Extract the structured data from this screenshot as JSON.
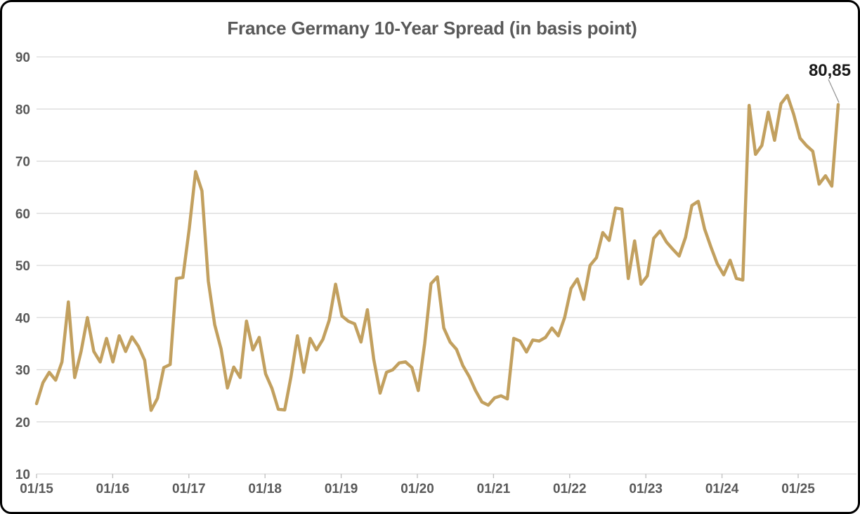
{
  "chart_data": {
    "type": "line",
    "title": "France Germany 10-Year Spread (in basis point)",
    "xlabel": "",
    "ylabel": "",
    "x_interval": "monthly",
    "x_tick_labels": [
      "01/15",
      "01/16",
      "01/17",
      "01/18",
      "01/19",
      "01/20",
      "01/21",
      "01/22",
      "01/23",
      "01/24",
      "01/25"
    ],
    "y_ticks": [
      10,
      20,
      30,
      40,
      50,
      60,
      70,
      80,
      90
    ],
    "ylim": [
      10,
      90
    ],
    "grid": "horizontal",
    "legend": "none",
    "values": [
      23.5,
      27.5,
      29.5,
      28,
      31.5,
      43,
      28.5,
      33.5,
      40,
      33.5,
      31.5,
      36,
      31.5,
      36.5,
      33.5,
      36.3,
      34.5,
      31.8,
      22.2,
      24.5,
      30.4,
      31,
      47.5,
      47.7,
      57,
      68,
      64.3,
      47,
      38.6,
      34,
      26.5,
      30.5,
      28.5,
      39.3,
      33.8,
      36.2,
      29.2,
      26.4,
      22.4,
      22.3,
      28.7,
      36.5,
      29.5,
      36,
      33.8,
      35.8,
      39.5,
      46.4,
      40.3,
      39.3,
      38.8,
      35.3,
      41.5,
      32,
      25.5,
      29.5,
      30,
      31.3,
      31.5,
      30.4,
      26,
      35,
      46.5,
      47.8,
      38,
      35.3,
      33.9,
      30.8,
      28.7,
      26,
      23.8,
      23.2,
      24.6,
      25,
      24.4,
      36,
      35.5,
      33.4,
      35.7,
      35.5,
      36.2,
      38,
      36.5,
      40,
      45.6,
      47.4,
      43.5,
      50,
      51.5,
      56.3,
      54.8,
      61,
      60.8,
      47.5,
      54.7,
      46.4,
      48,
      55.2,
      56.6,
      54.5,
      53.1,
      51.8,
      55.4,
      61.5,
      62.3,
      57,
      53.5,
      50.3,
      48.2,
      51,
      47.5,
      47.2,
      80.7,
      71.3,
      73,
      79.4,
      74,
      81,
      82.6,
      79,
      74.4,
      73,
      71.9,
      65.6,
      67.2,
      65.2,
      80.85
    ],
    "annotation": {
      "label": "80,85",
      "value": 80.85,
      "position": "last-point"
    },
    "colors": {
      "line": "#C2A05F",
      "grid": "#D9D9D9",
      "tick": "#BFBFBF",
      "axis_text": "#595959",
      "title_text": "#595959",
      "annotation_text": "#1A1A1A",
      "leader_line": "#999999",
      "frame_border": "#000000",
      "background": "#FFFFFF"
    }
  }
}
